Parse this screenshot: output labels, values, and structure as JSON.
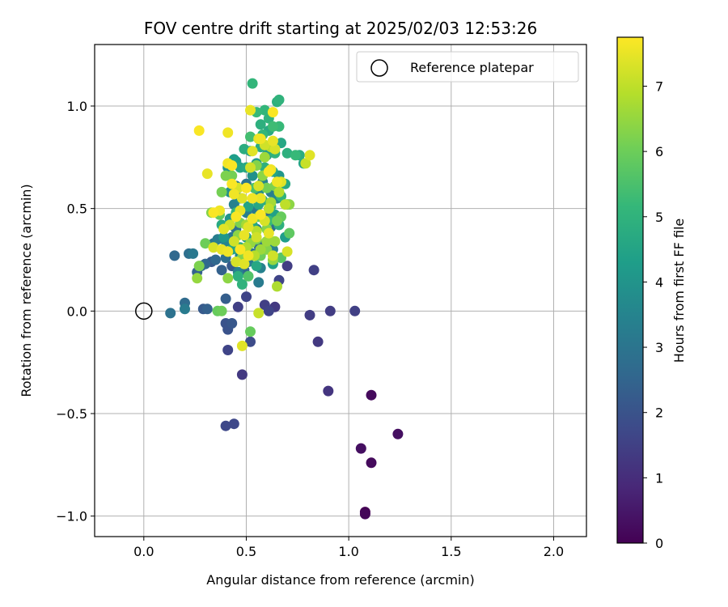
{
  "chart_data": {
    "type": "scatter",
    "title": "FOV centre drift starting at 2025/02/03 12:53:26",
    "xlabel": "Angular distance from reference (arcmin)",
    "ylabel": "Rotation from reference (arcmin)",
    "xlim": [
      -0.24,
      2.16
    ],
    "ylim": [
      -1.1,
      1.3
    ],
    "xticks": [
      0.0,
      0.5,
      1.0,
      1.5,
      2.0
    ],
    "xtick_labels": [
      "0.0",
      "0.5",
      "1.0",
      "1.5",
      "2.0"
    ],
    "yticks": [
      -1.0,
      -0.5,
      0.0,
      0.5,
      1.0
    ],
    "ytick_labels": [
      "−1.0",
      "−0.5",
      "0.0",
      "0.5",
      "1.0"
    ],
    "grid": true,
    "legend": {
      "location": "upper right",
      "entries": [
        "Reference platepar"
      ]
    },
    "reference_point": {
      "name": "Reference platepar",
      "x": 0.0,
      "y": 0.0
    },
    "colorbar": {
      "label": "Hours from first FF file",
      "colormap": "viridis",
      "range": [
        0,
        7.75
      ],
      "ticks": [
        0,
        1,
        2,
        3,
        4,
        5,
        6,
        7
      ],
      "tick_labels": [
        "0",
        "1",
        "2",
        "3",
        "4",
        "5",
        "6",
        "7"
      ]
    },
    "colormap_stops": [
      "#440154",
      "#482878",
      "#3e4989",
      "#31688e",
      "#26828e",
      "#1f9e89",
      "#35b779",
      "#6ece58",
      "#b5de2b",
      "#fde725"
    ],
    "points": [
      [
        1.08,
        -0.98,
        0.0
      ],
      [
        1.08,
        -0.99,
        0.1
      ],
      [
        1.11,
        -0.41,
        0.2
      ],
      [
        1.11,
        -0.74,
        0.2
      ],
      [
        1.24,
        -0.6,
        0.3
      ],
      [
        1.06,
        -0.67,
        0.3
      ],
      [
        0.9,
        -0.39,
        1.2
      ],
      [
        0.85,
        -0.15,
        1.3
      ],
      [
        0.81,
        -0.02,
        1.4
      ],
      [
        0.91,
        0.0,
        1.4
      ],
      [
        1.03,
        0.0,
        1.5
      ],
      [
        0.64,
        0.02,
        1.3
      ],
      [
        0.48,
        -0.31,
        1.3
      ],
      [
        0.4,
        -0.56,
        1.7
      ],
      [
        0.44,
        -0.55,
        1.7
      ],
      [
        0.41,
        -0.19,
        1.6
      ],
      [
        0.46,
        0.02,
        1.5
      ],
      [
        0.59,
        0.03,
        1.5
      ],
      [
        0.61,
        -0.0,
        1.6
      ],
      [
        0.5,
        0.07,
        1.6
      ],
      [
        0.52,
        -0.15,
        1.8
      ],
      [
        0.83,
        0.2,
        1.5
      ],
      [
        0.7,
        0.22,
        1.4
      ],
      [
        0.66,
        0.15,
        1.6
      ],
      [
        0.4,
        -0.06,
        2.0
      ],
      [
        0.41,
        -0.09,
        2.0
      ],
      [
        0.43,
        -0.06,
        2.1
      ],
      [
        0.31,
        0.01,
        2.4
      ],
      [
        0.29,
        0.01,
        2.2
      ],
      [
        0.4,
        0.06,
        2.3
      ],
      [
        0.2,
        0.04,
        2.7
      ],
      [
        0.13,
        -0.01,
        2.9
      ],
      [
        0.2,
        0.01,
        3.2
      ],
      [
        0.15,
        0.27,
        2.6
      ],
      [
        0.22,
        0.28,
        2.8
      ],
      [
        0.24,
        0.28,
        3.1
      ],
      [
        0.26,
        0.19,
        2.4
      ],
      [
        0.3,
        0.23,
        2.6
      ],
      [
        0.28,
        0.22,
        2.7
      ],
      [
        0.33,
        0.24,
        2.2
      ],
      [
        0.35,
        0.25,
        2.6
      ],
      [
        0.38,
        0.2,
        2.4
      ],
      [
        0.4,
        0.26,
        2.8
      ],
      [
        0.43,
        0.22,
        2.2
      ],
      [
        0.46,
        0.3,
        2.9
      ],
      [
        0.34,
        0.33,
        3.0
      ],
      [
        0.36,
        0.35,
        3.3
      ],
      [
        0.4,
        0.34,
        3.5
      ],
      [
        0.43,
        0.36,
        3.1
      ],
      [
        0.45,
        0.4,
        2.9
      ],
      [
        0.46,
        0.19,
        3.4
      ],
      [
        0.47,
        0.27,
        3.6
      ],
      [
        0.49,
        0.2,
        2.6
      ],
      [
        0.51,
        0.24,
        3.2
      ],
      [
        0.53,
        0.28,
        3.0
      ],
      [
        0.56,
        0.14,
        3.2
      ],
      [
        0.57,
        0.21,
        3.4
      ],
      [
        0.56,
        0.32,
        2.7
      ],
      [
        0.55,
        0.4,
        3.3
      ],
      [
        0.6,
        0.34,
        3.6
      ],
      [
        0.63,
        0.3,
        3.4
      ],
      [
        0.62,
        0.41,
        2.8
      ],
      [
        0.6,
        0.46,
        2.7
      ],
      [
        0.55,
        0.49,
        3.1
      ],
      [
        0.5,
        0.48,
        3.3
      ],
      [
        0.44,
        0.52,
        3.4
      ],
      [
        0.47,
        0.55,
        3.7
      ],
      [
        0.42,
        0.58,
        3.8
      ],
      [
        0.45,
        0.61,
        3.2
      ],
      [
        0.5,
        0.62,
        3.0
      ],
      [
        0.53,
        0.66,
        3.9
      ],
      [
        0.58,
        0.63,
        3.5
      ],
      [
        0.62,
        0.58,
        3.3
      ],
      [
        0.65,
        0.55,
        3.6
      ],
      [
        0.56,
        0.58,
        3.8
      ],
      [
        0.41,
        0.7,
        4.0
      ],
      [
        0.45,
        0.73,
        4.3
      ],
      [
        0.5,
        0.7,
        4.6
      ],
      [
        0.55,
        0.72,
        4.2
      ],
      [
        0.59,
        0.7,
        4.9
      ],
      [
        0.63,
        0.68,
        4.5
      ],
      [
        0.66,
        0.66,
        4.1
      ],
      [
        0.69,
        0.62,
        4.7
      ],
      [
        0.52,
        0.78,
        4.4
      ],
      [
        0.57,
        0.8,
        4.8
      ],
      [
        0.6,
        0.76,
        4.2
      ],
      [
        0.64,
        0.77,
        5.0
      ],
      [
        0.67,
        0.82,
        4.6
      ],
      [
        0.7,
        0.77,
        4.9
      ],
      [
        0.74,
        0.76,
        5.2
      ],
      [
        0.76,
        0.76,
        4.8
      ],
      [
        0.78,
        0.72,
        4.5
      ],
      [
        0.58,
        0.86,
        5.1
      ],
      [
        0.61,
        0.88,
        4.7
      ],
      [
        0.63,
        0.9,
        5.3
      ],
      [
        0.57,
        0.91,
        4.9
      ],
      [
        0.61,
        0.94,
        5.0
      ],
      [
        0.66,
        0.9,
        5.2
      ],
      [
        0.55,
        0.97,
        5.2
      ],
      [
        0.59,
        0.98,
        5.1
      ],
      [
        0.65,
        1.02,
        4.9
      ],
      [
        0.66,
        1.03,
        5.0
      ],
      [
        0.53,
        1.11,
        5.1
      ],
      [
        0.49,
        0.79,
        4.8
      ],
      [
        0.47,
        0.7,
        4.5
      ],
      [
        0.44,
        0.74,
        4.3
      ],
      [
        0.52,
        0.85,
        5.4
      ],
      [
        0.54,
        0.6,
        5.5
      ],
      [
        0.58,
        0.54,
        4.8
      ],
      [
        0.64,
        0.47,
        4.4
      ],
      [
        0.61,
        0.44,
        5.2
      ],
      [
        0.66,
        0.42,
        4.9
      ],
      [
        0.69,
        0.36,
        4.3
      ],
      [
        0.53,
        0.42,
        4.6
      ],
      [
        0.5,
        0.36,
        4.2
      ],
      [
        0.47,
        0.31,
        4.8
      ],
      [
        0.43,
        0.3,
        4.5
      ],
      [
        0.39,
        0.36,
        4.1
      ],
      [
        0.38,
        0.42,
        4.7
      ],
      [
        0.42,
        0.45,
        4.0
      ],
      [
        0.45,
        0.48,
        5.2
      ],
      [
        0.51,
        0.51,
        4.5
      ],
      [
        0.56,
        0.52,
        4.6
      ],
      [
        0.62,
        0.51,
        5.3
      ],
      [
        0.67,
        0.56,
        5.0
      ],
      [
        0.7,
        0.52,
        5.6
      ],
      [
        0.46,
        0.17,
        4.9
      ],
      [
        0.51,
        0.17,
        5.6
      ],
      [
        0.55,
        0.22,
        4.6
      ],
      [
        0.48,
        0.13,
        5.0
      ],
      [
        0.63,
        0.23,
        4.4
      ],
      [
        0.56,
        0.27,
        5.1
      ],
      [
        0.67,
        0.26,
        5.7
      ],
      [
        0.71,
        0.38,
        5.8
      ],
      [
        0.52,
        -0.1,
        5.9
      ],
      [
        0.38,
        0.0,
        6.0
      ],
      [
        0.36,
        0.0,
        5.9
      ],
      [
        0.3,
        0.33,
        6.0
      ],
      [
        0.33,
        0.48,
        6.3
      ],
      [
        0.27,
        0.22,
        6.2
      ],
      [
        0.26,
        0.16,
        6.5
      ],
      [
        0.38,
        0.58,
        6.1
      ],
      [
        0.37,
        0.47,
        5.9
      ],
      [
        0.41,
        0.16,
        6.4
      ],
      [
        0.4,
        0.66,
        6.2
      ],
      [
        0.43,
        0.66,
        6.1
      ],
      [
        0.48,
        0.26,
        6.3
      ],
      [
        0.57,
        0.27,
        6.0
      ],
      [
        0.6,
        0.34,
        6.6
      ],
      [
        0.6,
        0.4,
        6.3
      ],
      [
        0.64,
        0.34,
        6.6
      ],
      [
        0.63,
        0.25,
        6.5
      ],
      [
        0.65,
        0.44,
        6.1
      ],
      [
        0.67,
        0.46,
        5.9
      ],
      [
        0.71,
        0.52,
        6.4
      ],
      [
        0.64,
        0.61,
        6.2
      ],
      [
        0.62,
        0.53,
        6.7
      ],
      [
        0.56,
        0.46,
        6.0
      ],
      [
        0.5,
        0.42,
        6.7
      ],
      [
        0.47,
        0.43,
        6.2
      ],
      [
        0.46,
        0.37,
        6.4
      ],
      [
        0.5,
        0.31,
        6.8
      ],
      [
        0.52,
        0.33,
        6.5
      ],
      [
        0.55,
        0.35,
        6.2
      ],
      [
        0.54,
        0.27,
        6.9
      ],
      [
        0.57,
        0.3,
        6.6
      ],
      [
        0.6,
        0.3,
        6.3
      ],
      [
        0.55,
        0.39,
        6.9
      ],
      [
        0.62,
        0.8,
        6.9
      ],
      [
        0.59,
        0.75,
        6.6
      ],
      [
        0.55,
        0.71,
        6.3
      ],
      [
        0.58,
        0.66,
        6.4
      ],
      [
        0.6,
        0.6,
        6.1
      ],
      [
        0.66,
        0.58,
        6.9
      ],
      [
        0.79,
        0.72,
        7.1
      ],
      [
        0.69,
        0.52,
        7.0
      ],
      [
        0.65,
        0.12,
        6.8
      ],
      [
        0.48,
        -0.17,
        7.4
      ],
      [
        0.56,
        -0.01,
        7.1
      ],
      [
        0.7,
        0.29,
        7.3
      ],
      [
        0.63,
        0.27,
        7.2
      ],
      [
        0.61,
        0.5,
        7.0
      ],
      [
        0.67,
        0.63,
        7.4
      ],
      [
        0.64,
        0.79,
        7.3
      ],
      [
        0.59,
        0.81,
        7.2
      ],
      [
        0.63,
        0.83,
        7.5
      ],
      [
        0.56,
        0.84,
        7.5
      ],
      [
        0.53,
        0.78,
        7.4
      ],
      [
        0.62,
        0.69,
        7.6
      ],
      [
        0.52,
        0.7,
        7.2
      ],
      [
        0.56,
        0.61,
        7.3
      ],
      [
        0.53,
        0.55,
        7.6
      ],
      [
        0.57,
        0.55,
        7.5
      ],
      [
        0.5,
        0.6,
        7.7
      ],
      [
        0.48,
        0.55,
        7.4
      ],
      [
        0.44,
        0.57,
        7.6
      ],
      [
        0.43,
        0.62,
        7.7
      ],
      [
        0.46,
        0.6,
        7.3
      ],
      [
        0.47,
        0.49,
        7.5
      ],
      [
        0.45,
        0.46,
        7.7
      ],
      [
        0.42,
        0.42,
        7.2
      ],
      [
        0.39,
        0.4,
        7.4
      ],
      [
        0.37,
        0.49,
        7.6
      ],
      [
        0.34,
        0.48,
        7.7
      ],
      [
        0.38,
        0.3,
        7.5
      ],
      [
        0.34,
        0.31,
        7.3
      ],
      [
        0.41,
        0.29,
        7.6
      ],
      [
        0.44,
        0.34,
        7.2
      ],
      [
        0.47,
        0.3,
        7.7
      ],
      [
        0.49,
        0.37,
        7.5
      ],
      [
        0.51,
        0.41,
        7.4
      ],
      [
        0.53,
        0.45,
        7.6
      ],
      [
        0.57,
        0.47,
        7.7
      ],
      [
        0.59,
        0.44,
        7.3
      ],
      [
        0.61,
        0.38,
        7.5
      ],
      [
        0.55,
        0.36,
        7.2
      ],
      [
        0.51,
        0.27,
        7.6
      ],
      [
        0.49,
        0.23,
        7.4
      ],
      [
        0.45,
        0.24,
        7.3
      ],
      [
        0.43,
        0.71,
        7.7
      ],
      [
        0.41,
        0.72,
        7.6
      ],
      [
        0.31,
        0.67,
        7.5
      ],
      [
        0.27,
        0.88,
        7.7
      ],
      [
        0.41,
        0.87,
        7.6
      ],
      [
        0.52,
        0.98,
        7.5
      ],
      [
        0.63,
        0.97,
        7.7
      ],
      [
        0.57,
        0.84,
        7.6
      ],
      [
        0.81,
        0.76,
        7.4
      ],
      [
        0.61,
        0.68,
        7.7
      ],
      [
        0.65,
        0.63,
        7.6
      ]
    ]
  }
}
